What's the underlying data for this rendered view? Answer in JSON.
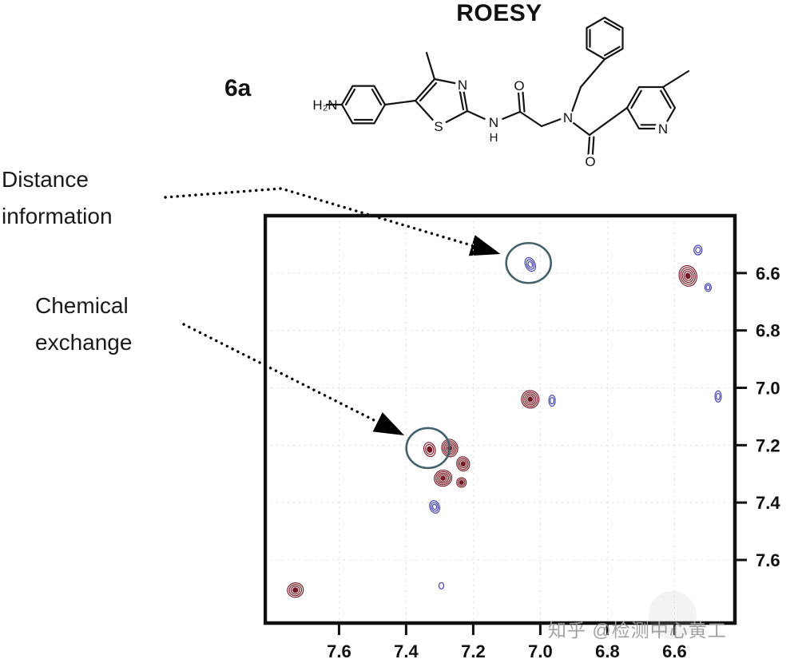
{
  "figure": {
    "watermark": "知乎 @检测中心黄工"
  },
  "molecule": {
    "compound_id": "6a",
    "atoms": {
      "amine": "H₂N",
      "thiazole_n": "N",
      "thiazole_s": "S",
      "amide_n": "N",
      "amide_h": "H",
      "carbonyl_o1": "O",
      "central_n": "N",
      "carbonyl_o2": "O",
      "pyridine_n": "N"
    }
  },
  "annotations": {
    "distance": {
      "label": "Distance\ninformation"
    },
    "exchange": {
      "label": "Chemical\nexchange"
    }
  },
  "chart_data": {
    "type": "scatter",
    "representation": "2D ROESY NMR contour spectrum (aromatic region)",
    "title": "ROESY",
    "xlabel": "",
    "ylabel": "",
    "x_ticks": [
      "7.6",
      "7.4",
      "7.2",
      "7.0",
      "6.8",
      "6.6"
    ],
    "y_ticks": [
      "6.6",
      "6.8",
      "7.0",
      "7.2",
      "7.4",
      "7.6"
    ],
    "x_range": [
      7.82,
      6.42
    ],
    "y_range": [
      6.4,
      7.82
    ],
    "x_reversed": true,
    "grid": true,
    "colors": {
      "red": "#731822",
      "blue": "#3c3cae",
      "circle": "#44606a"
    },
    "peaks": [
      {
        "f2": 7.03,
        "f1": 6.57,
        "color": "blue",
        "assignment": "ROE cross peak (distance information, circled)",
        "size": [
          6,
          9
        ],
        "levels": 3,
        "tilt": -25
      },
      {
        "f2": 6.53,
        "f1": 6.52,
        "color": "blue",
        "assignment": "",
        "size": [
          5,
          6
        ],
        "levels": 2,
        "tilt": 0
      },
      {
        "f2": 6.56,
        "f1": 6.61,
        "color": "red",
        "assignment": "diagonal peak",
        "size": [
          11,
          13
        ],
        "levels": 5,
        "tilt": -15
      },
      {
        "f2": 6.5,
        "f1": 6.65,
        "color": "blue",
        "assignment": "",
        "size": [
          4,
          5
        ],
        "levels": 2,
        "tilt": 0
      },
      {
        "f2": 7.03,
        "f1": 7.04,
        "color": "red",
        "assignment": "diagonal peak",
        "size": [
          11,
          11
        ],
        "levels": 5,
        "tilt": -15
      },
      {
        "f2": 6.965,
        "f1": 7.045,
        "color": "blue",
        "assignment": "",
        "size": [
          4,
          7
        ],
        "levels": 2,
        "tilt": 0
      },
      {
        "f2": 6.47,
        "f1": 7.03,
        "color": "blue",
        "assignment": "",
        "size": [
          4,
          7
        ],
        "levels": 2,
        "tilt": 0
      },
      {
        "f2": 7.33,
        "f1": 7.215,
        "color": "red",
        "assignment": "chemical exchange cross peak (circled)",
        "size": [
          7,
          9
        ],
        "levels": 3,
        "tilt": -20
      },
      {
        "f2": 7.27,
        "f1": 7.21,
        "color": "red",
        "assignment": "diagonal peak",
        "size": [
          10,
          11
        ],
        "levels": 5,
        "tilt": -15
      },
      {
        "f2": 7.23,
        "f1": 7.265,
        "color": "red",
        "assignment": "diagonal peak",
        "size": [
          8,
          9
        ],
        "levels": 4,
        "tilt": -15
      },
      {
        "f2": 7.29,
        "f1": 7.315,
        "color": "red",
        "assignment": "diagonal peak",
        "size": [
          11,
          10
        ],
        "levels": 5,
        "tilt": -15
      },
      {
        "f2": 7.235,
        "f1": 7.33,
        "color": "red",
        "assignment": "",
        "size": [
          6,
          6
        ],
        "levels": 3,
        "tilt": 0
      },
      {
        "f2": 7.315,
        "f1": 7.415,
        "color": "blue",
        "assignment": "ROE cross peak",
        "size": [
          6,
          8
        ],
        "levels": 3,
        "tilt": -20
      },
      {
        "f2": 7.73,
        "f1": 7.705,
        "color": "red",
        "assignment": "diagonal peak",
        "size": [
          10,
          9
        ],
        "levels": 4,
        "tilt": -10
      },
      {
        "f2": 7.295,
        "f1": 7.69,
        "color": "blue",
        "assignment": "",
        "size": [
          3,
          4
        ],
        "levels": 1,
        "tilt": 0
      }
    ],
    "annotation_circles": [
      {
        "name": "circle-distance-information",
        "f2": 7.035,
        "f1": 6.565,
        "rx": 28,
        "ry": 25
      },
      {
        "name": "circle-chemical-exchange",
        "f2": 7.335,
        "f1": 7.21,
        "rx": 27,
        "ry": 25
      }
    ],
    "legend_position": "none"
  }
}
